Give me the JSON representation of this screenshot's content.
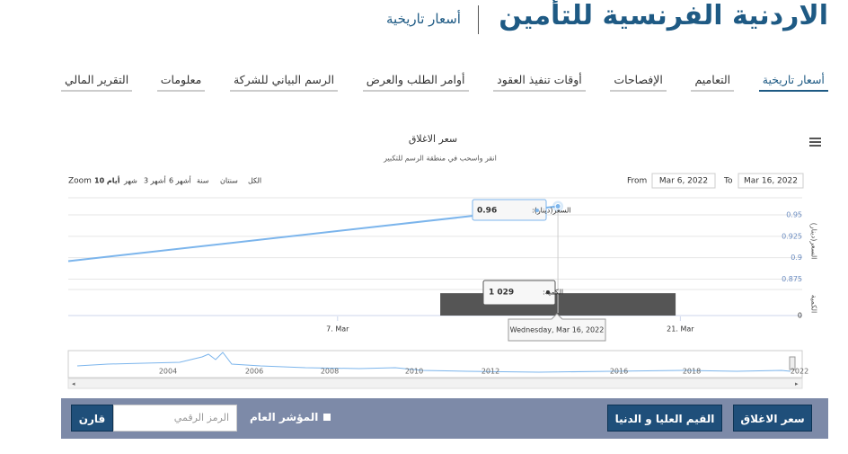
{
  "header": {
    "title": "الاردنية الفرنسية للتأمين",
    "subtitle": "أسعار تاريخية"
  },
  "tabs": [
    "أسعار تاريخية",
    "التعاميم",
    "الإفصاحات",
    "أوقات تنفيذ العقود",
    "أوامر الطلب والعرض",
    "الرسم البياني للشركة",
    "معلومات",
    "التقرير المالي"
  ],
  "chart_data": {
    "type": "line",
    "title": "سعر الاغلاق",
    "subtitle": "انقر واسحب في منطقة الرسم للتكبير",
    "zoom": {
      "label": "Zoom",
      "buttons": [
        "10 أيام",
        "شهر",
        "3 أشهر",
        "6 أشهر",
        "سنة",
        "سنتان",
        "الكل"
      ]
    },
    "range": {
      "from_label": "From",
      "from": "Mar 6, 2022",
      "to_label": "To",
      "to": "Mar 16, 2022"
    },
    "x": [
      -4,
      16
    ],
    "xlim": [
      -4,
      25.5
    ],
    "xticks": [
      {
        "value": 7,
        "label": "7. Mar"
      },
      {
        "value": 21,
        "label": "21. Mar"
      }
    ],
    "series": [
      {
        "name": "السعر(دينار)",
        "color": "#7cb5ec",
        "values": [
          0.896,
          0.96
        ]
      },
      {
        "name": "الكمية",
        "color": "#555555",
        "axis": "y2",
        "values": [
          null,
          1029
        ],
        "value_labels": [
          null,
          "1 029"
        ]
      }
    ],
    "ylabel": "السعر(دينار)",
    "y2label": "الكمية",
    "ylim": [
      0.865,
      0.97
    ],
    "yticks": [
      0.875,
      0.9,
      0.925,
      0.95
    ],
    "y2lim": [
      0,
      1200
    ],
    "y2ticks": [
      0
    ],
    "grid": true,
    "tooltip": {
      "price_label": "السعر(دينار):",
      "volume_label": "الكمية:",
      "date": "Wednesday, Mar 16, 2022"
    },
    "navigator_years": [
      "2004",
      "2006",
      "2008",
      "2010",
      "2012",
      "2016",
      "2018",
      "2022"
    ]
  },
  "controls": {
    "close_button": "سعر الاغلاق",
    "highlow_button": "القيم العليا و الدنيا",
    "index_checkbox": "المؤشر العام",
    "symbol_placeholder": "الرمز الرقمي",
    "compare_button": "قارن"
  }
}
